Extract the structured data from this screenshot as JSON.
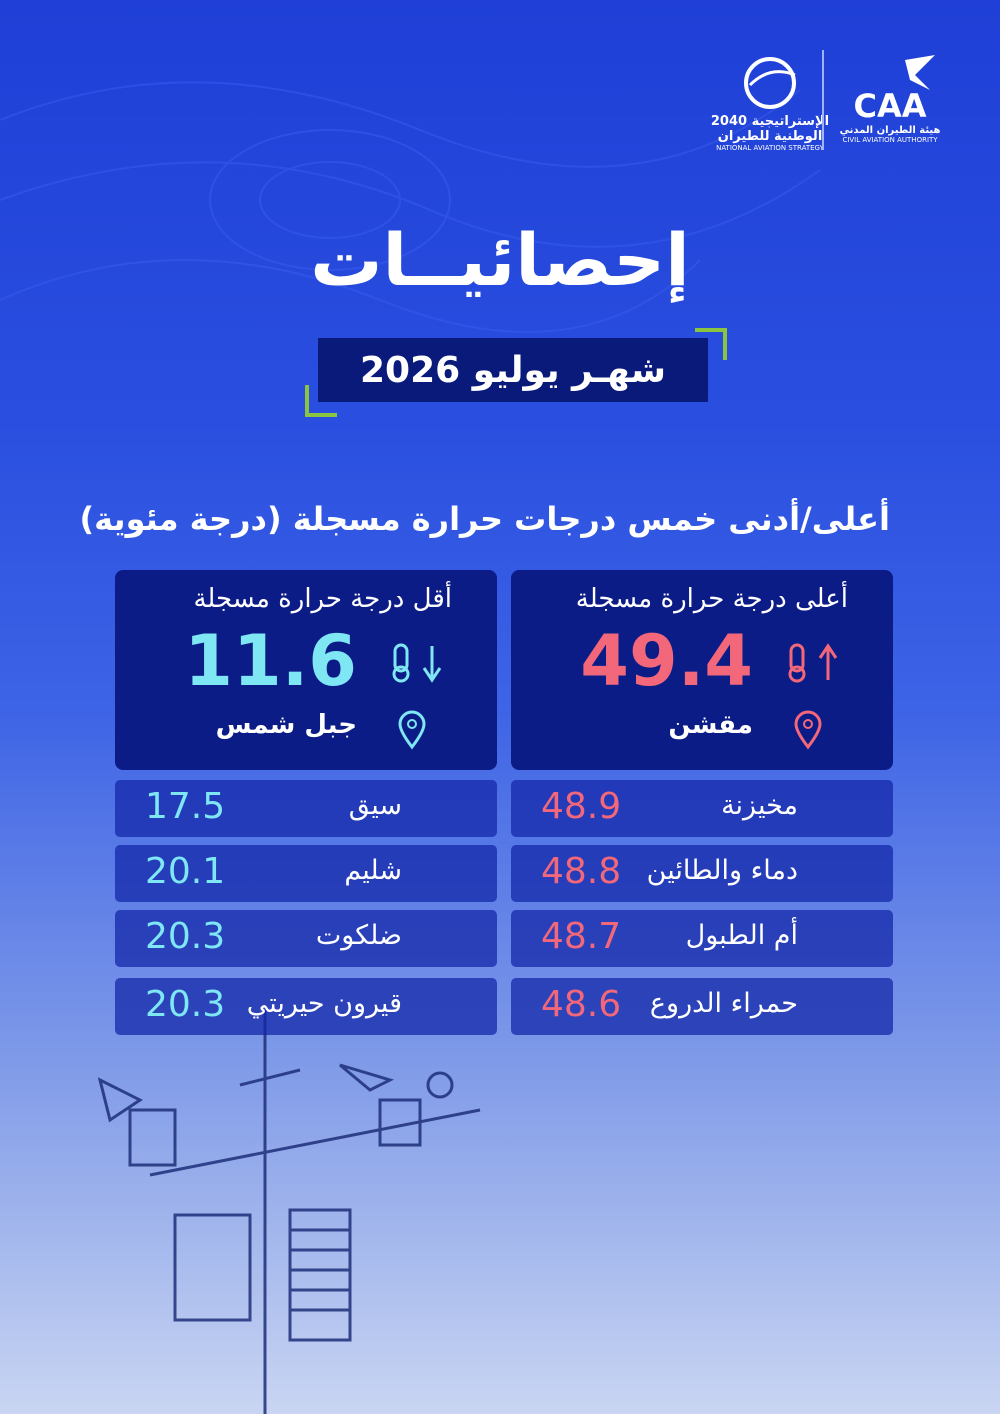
{
  "header": {
    "strategy_logo": {
      "line1": "الإستراتيجية 2040",
      "line2": "الوطنية للطيران",
      "english": "NATIONAL AVIATION STRATEGY"
    },
    "caa_logo": {
      "acronym": "CAA",
      "arabic": "هيئة الطيران المدني",
      "english": "CIVIL AVIATION AUTHORITY"
    },
    "title": "إحصائيــات",
    "subtitle": "شهـر يوليو 2026"
  },
  "section_heading": "أعلى/أدنى خمس درجات حرارة مسجلة (درجة مئوية)",
  "highest": {
    "label": "أعلى درجة حرارة مسجلة",
    "value": 49.4,
    "location": "مقشن",
    "others": [
      {
        "name": "مخيزنة",
        "value": 48.9
      },
      {
        "name": "دماء والطائين",
        "value": 48.8
      },
      {
        "name": "أم الطبول",
        "value": 48.7
      },
      {
        "name": "حمراء الدروع",
        "value": 48.6
      }
    ]
  },
  "lowest": {
    "label": "أقل درجة حرارة مسجلة",
    "value": 11.6,
    "location": "جبل شمس",
    "others": [
      {
        "name": "سيق",
        "value": 17.5
      },
      {
        "name": "شليم",
        "value": 20.1
      },
      {
        "name": "ضلكوت",
        "value": 20.3
      },
      {
        "name": "قيرون حيريتي",
        "value": 20.3
      }
    ]
  }
}
